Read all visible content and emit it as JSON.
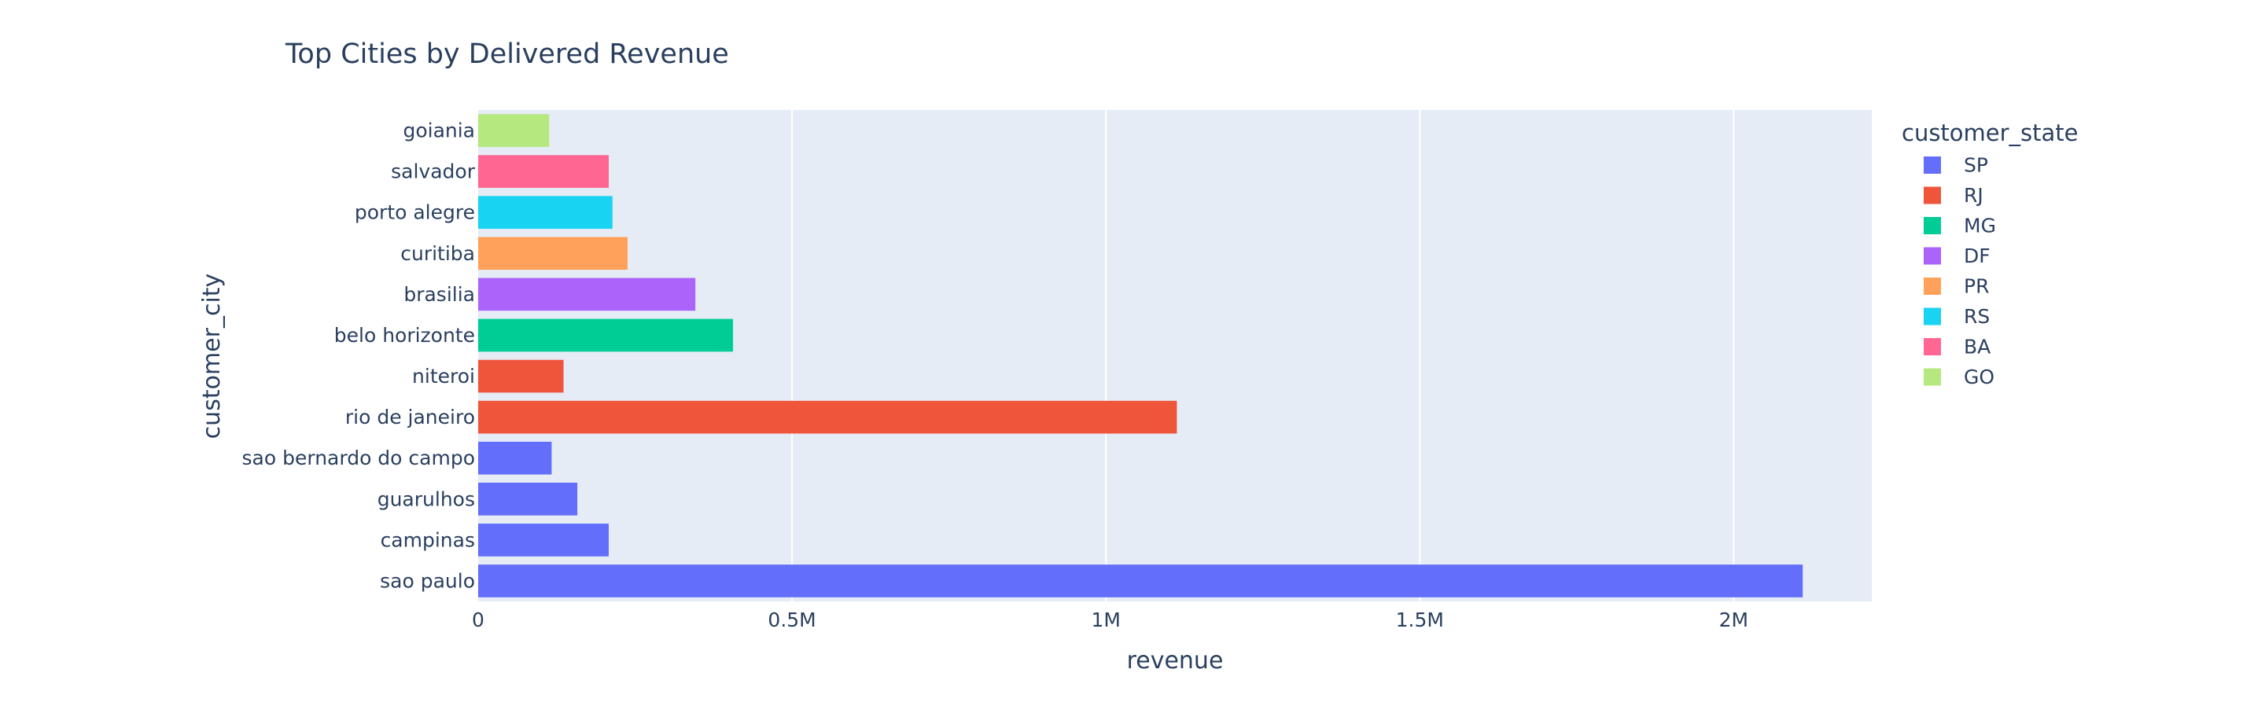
{
  "chart_data": {
    "type": "bar",
    "orientation": "horizontal",
    "title": "Top Cities by Delivered Revenue",
    "xlabel": "revenue",
    "ylabel": "customer_city",
    "xlim": [
      0,
      2220000
    ],
    "x_ticks": [
      {
        "value": 0,
        "label": "0"
      },
      {
        "value": 500000,
        "label": "0.5M"
      },
      {
        "value": 1000000,
        "label": "1M"
      },
      {
        "value": 1500000,
        "label": "1.5M"
      },
      {
        "value": 2000000,
        "label": "2M"
      }
    ],
    "grid": true,
    "legend": {
      "title": "customer_state",
      "placement": "right"
    },
    "series": [
      {
        "name": "SP",
        "color": "#636efa",
        "categories": [
          "sao paulo",
          "campinas",
          "guarulhos",
          "sao bernardo do campo"
        ],
        "values": [
          2110000,
          208000,
          158000,
          117000
        ]
      },
      {
        "name": "RJ",
        "color": "#EF553B",
        "categories": [
          "rio de janeiro",
          "niteroi"
        ],
        "values": [
          1113000,
          136000
        ]
      },
      {
        "name": "MG",
        "color": "#00cc96",
        "categories": [
          "belo horizonte"
        ],
        "values": [
          406000
        ]
      },
      {
        "name": "DF",
        "color": "#ab63fa",
        "categories": [
          "brasilia"
        ],
        "values": [
          346000
        ]
      },
      {
        "name": "PR",
        "color": "#FFA15A",
        "categories": [
          "curitiba"
        ],
        "values": [
          238000
        ]
      },
      {
        "name": "RS",
        "color": "#19d3f3",
        "categories": [
          "porto alegre"
        ],
        "values": [
          214000
        ]
      },
      {
        "name": "BA",
        "color": "#FF6692",
        "categories": [
          "salvador"
        ],
        "values": [
          208000
        ]
      },
      {
        "name": "GO",
        "color": "#B6E880",
        "categories": [
          "goiania"
        ],
        "values": [
          113000
        ]
      }
    ],
    "category_order_bottom_to_top": [
      "sao paulo",
      "campinas",
      "guarulhos",
      "sao bernardo do campo",
      "rio de janeiro",
      "niteroi",
      "belo horizonte",
      "brasilia",
      "curitiba",
      "porto alegre",
      "salvador",
      "goiania"
    ]
  }
}
